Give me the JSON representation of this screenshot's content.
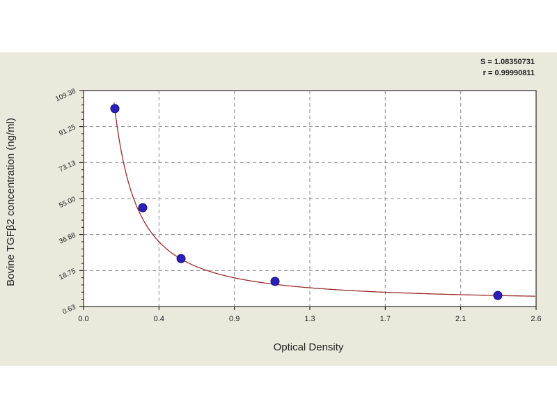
{
  "chart_data": {
    "type": "scatter",
    "title": "",
    "xlabel": "Optical Density",
    "ylabel": "Bovine TGFβ2 concentration (ng/ml)",
    "xlim": [
      0.0,
      2.6
    ],
    "ylim": [
      0.63,
      109.38
    ],
    "x_ticks": [
      "0.0",
      "0.4",
      "0.9",
      "1.3",
      "1.7",
      "2.1",
      "2.6"
    ],
    "y_ticks": [
      "0.63",
      "18.75",
      "36.88",
      "55.00",
      "73.13",
      "91.25",
      "109.38"
    ],
    "grid": true,
    "stats": [
      "S = 1.08350731",
      "r = 0.99990811"
    ],
    "points": [
      {
        "x": 0.18,
        "y": 100.3
      },
      {
        "x": 0.34,
        "y": 50.4
      },
      {
        "x": 0.56,
        "y": 24.8
      },
      {
        "x": 1.1,
        "y": 13.3
      },
      {
        "x": 2.38,
        "y": 6.2
      }
    ],
    "fitted_curve": true,
    "colors": {
      "points": "#2a1fb8",
      "curve": "#9b2a2a",
      "background": "#ebe8dc",
      "plot": "#ffffff"
    }
  }
}
